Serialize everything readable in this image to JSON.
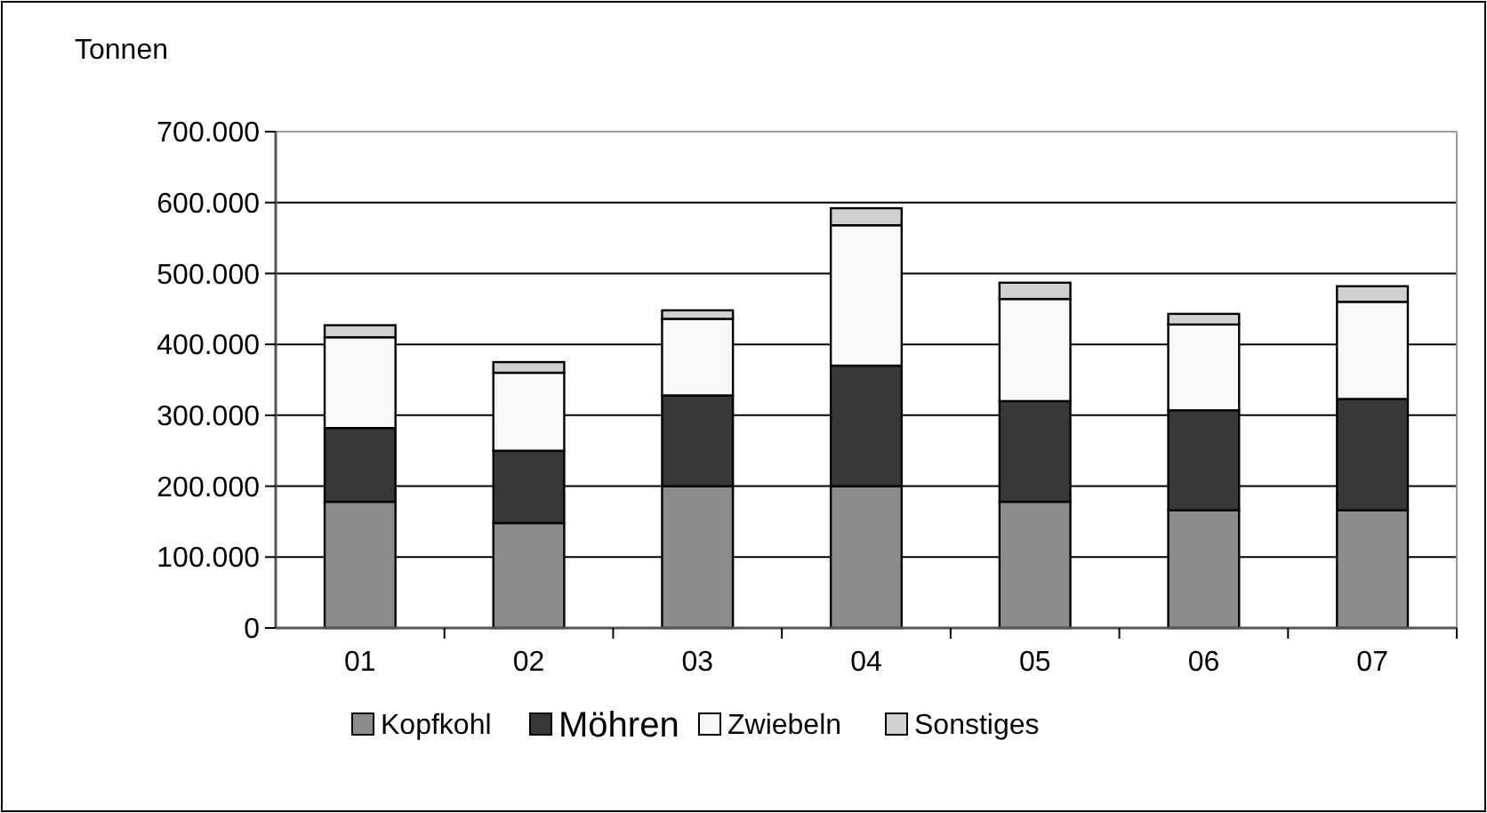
{
  "chart_data": {
    "type": "bar",
    "stacked": true,
    "ylabel": "Tonnen",
    "categories": [
      "01",
      "02",
      "03",
      "04",
      "05",
      "06",
      "07"
    ],
    "series": [
      {
        "name": "Kopfkohl",
        "color": "#8c8c8c",
        "values": [
          178000,
          148000,
          200000,
          200000,
          178000,
          166000,
          166000
        ]
      },
      {
        "name": "Möhren",
        "color": "#383838",
        "values": [
          104000,
          102000,
          128000,
          170000,
          142000,
          141000,
          157000
        ]
      },
      {
        "name": "Zwiebeln",
        "color": "#f8f8f8",
        "values": [
          128000,
          110000,
          108000,
          198000,
          144000,
          121000,
          137000
        ]
      },
      {
        "name": "Sonstiges",
        "color": "#d0d0d0",
        "values": [
          17000,
          15000,
          12000,
          24000,
          23000,
          15000,
          22000
        ]
      }
    ],
    "ylim": [
      0,
      700000
    ],
    "yticks": [
      {
        "value": 0,
        "label": "0"
      },
      {
        "value": 100000,
        "label": "100.000"
      },
      {
        "value": 200000,
        "label": "200.000"
      },
      {
        "value": 300000,
        "label": "300.000"
      },
      {
        "value": 400000,
        "label": "400.000"
      },
      {
        "value": 500000,
        "label": "500.000"
      },
      {
        "value": 600000,
        "label": "600.000"
      },
      {
        "value": 700000,
        "label": "700.000"
      }
    ],
    "grid": "y",
    "legend": "bottom"
  }
}
